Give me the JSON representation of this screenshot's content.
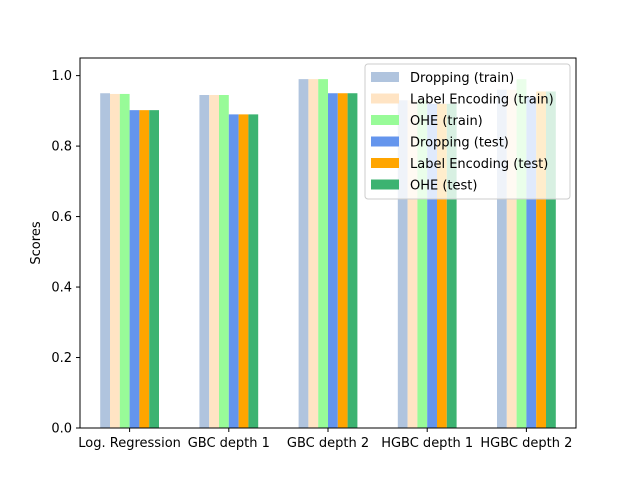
{
  "chart_data": {
    "type": "bar",
    "title": "",
    "xlabel": "",
    "ylabel": "Scores",
    "ylim": [
      0,
      1.05
    ],
    "yticks": [
      0.0,
      0.2,
      0.4,
      0.6,
      0.8,
      1.0
    ],
    "ytick_labels": [
      "0.0",
      "0.2",
      "0.4",
      "0.6",
      "0.8",
      "1.0"
    ],
    "categories": [
      "Log. Regression",
      "GBC depth 1",
      "GBC depth 2",
      "HGBC depth 1",
      "HGBC depth 2"
    ],
    "grid": false,
    "legend_position": "top-right",
    "series": [
      {
        "name": "Dropping (train)",
        "color": "#b0c4de",
        "values": [
          0.95,
          0.945,
          0.99,
          0.93,
          0.96
        ]
      },
      {
        "name": "Label Encoding (train)",
        "color": "#ffe4c4",
        "values": [
          0.948,
          0.945,
          0.99,
          0.93,
          0.96
        ]
      },
      {
        "name": "OHE (train)",
        "color": "#98fb98",
        "values": [
          0.948,
          0.945,
          0.99,
          0.93,
          0.99
        ]
      },
      {
        "name": "Dropping (test)",
        "color": "#6495ed",
        "values": [
          0.902,
          0.89,
          0.95,
          0.92,
          0.94
        ]
      },
      {
        "name": "Label Encoding (test)",
        "color": "#ffa500",
        "values": [
          0.902,
          0.89,
          0.95,
          0.92,
          0.955
        ]
      },
      {
        "name": "OHE (test)",
        "color": "#3cb371",
        "values": [
          0.902,
          0.89,
          0.95,
          0.92,
          0.955
        ]
      }
    ]
  }
}
